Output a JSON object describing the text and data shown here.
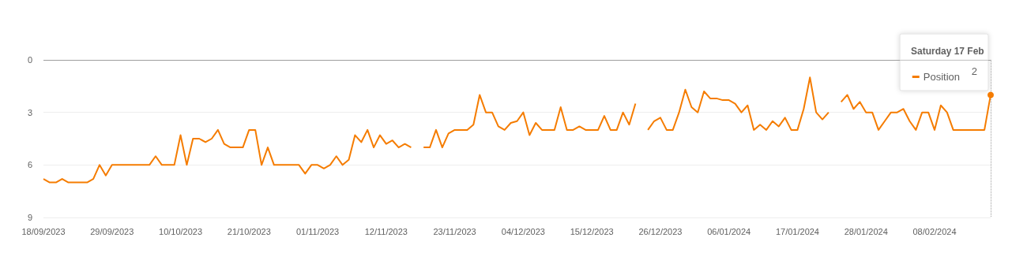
{
  "chart_data": {
    "type": "line",
    "x": [
      "2023-09-18",
      "2023-09-19",
      "2023-09-20",
      "2023-09-21",
      "2023-09-22",
      "2023-09-23",
      "2023-09-24",
      "2023-09-25",
      "2023-09-26",
      "2023-09-27",
      "2023-09-28",
      "2023-09-29",
      "2023-09-30",
      "2023-10-01",
      "2023-10-02",
      "2023-10-03",
      "2023-10-04",
      "2023-10-05",
      "2023-10-06",
      "2023-10-07",
      "2023-10-08",
      "2023-10-09",
      "2023-10-10",
      "2023-10-11",
      "2023-10-12",
      "2023-10-13",
      "2023-10-14",
      "2023-10-15",
      "2023-10-16",
      "2023-10-17",
      "2023-10-18",
      "2023-10-19",
      "2023-10-20",
      "2023-10-21",
      "2023-10-22",
      "2023-10-23",
      "2023-10-24",
      "2023-10-25",
      "2023-10-26",
      "2023-10-27",
      "2023-10-28",
      "2023-10-29",
      "2023-10-30",
      "2023-10-31",
      "2023-11-01",
      "2023-11-02",
      "2023-11-03",
      "2023-11-04",
      "2023-11-05",
      "2023-11-06",
      "2023-11-07",
      "2023-11-08",
      "2023-11-09",
      "2023-11-10",
      "2023-11-11",
      "2023-11-12",
      "2023-11-13",
      "2023-11-14",
      "2023-11-15",
      "2023-11-16",
      "2023-11-17",
      "2023-11-18",
      "2023-11-19",
      "2023-11-20",
      "2023-11-21",
      "2023-11-22",
      "2023-11-23",
      "2023-11-24",
      "2023-11-25",
      "2023-11-26",
      "2023-11-27",
      "2023-11-28",
      "2023-11-29",
      "2023-11-30",
      "2023-12-01",
      "2023-12-02",
      "2023-12-03",
      "2023-12-04",
      "2023-12-05",
      "2023-12-06",
      "2023-12-07",
      "2023-12-08",
      "2023-12-09",
      "2023-12-10",
      "2023-12-11",
      "2023-12-12",
      "2023-12-13",
      "2023-12-14",
      "2023-12-15",
      "2023-12-16",
      "2023-12-17",
      "2023-12-18",
      "2023-12-19",
      "2023-12-20",
      "2023-12-21",
      "2023-12-22",
      "2023-12-23",
      "2023-12-24",
      "2023-12-25",
      "2023-12-26",
      "2023-12-27",
      "2023-12-28",
      "2023-12-29",
      "2023-12-30",
      "2023-12-31",
      "2024-01-01",
      "2024-01-02",
      "2024-01-03",
      "2024-01-04",
      "2024-01-05",
      "2024-01-06",
      "2024-01-07",
      "2024-01-08",
      "2024-01-09",
      "2024-01-10",
      "2024-01-11",
      "2024-01-12",
      "2024-01-13",
      "2024-01-14",
      "2024-01-15",
      "2024-01-16",
      "2024-01-17",
      "2024-01-18",
      "2024-01-19",
      "2024-01-20",
      "2024-01-21",
      "2024-01-22",
      "2024-01-23",
      "2024-01-24",
      "2024-01-25",
      "2024-01-26",
      "2024-01-27",
      "2024-01-28",
      "2024-01-29",
      "2024-01-30",
      "2024-01-31",
      "2024-02-01",
      "2024-02-02",
      "2024-02-03",
      "2024-02-04",
      "2024-02-05",
      "2024-02-06",
      "2024-02-07",
      "2024-02-08",
      "2024-02-09",
      "2024-02-10",
      "2024-02-11",
      "2024-02-12",
      "2024-02-13",
      "2024-02-14",
      "2024-02-15",
      "2024-02-16",
      "2024-02-17"
    ],
    "series": [
      {
        "name": "Position",
        "color": "#f57c00",
        "values": [
          6.8,
          7,
          7,
          6.8,
          7,
          7,
          7,
          7,
          6.8,
          6,
          6.6,
          6,
          6,
          6,
          6,
          6,
          6,
          6,
          5.5,
          6,
          6,
          6,
          4.3,
          6,
          4.5,
          4.5,
          4.7,
          4.5,
          4,
          4.8,
          5,
          5,
          5,
          4,
          4,
          6,
          5,
          6,
          6,
          6,
          6,
          6,
          6.5,
          6,
          6,
          6.2,
          6,
          5.5,
          6,
          5.7,
          4.3,
          4.7,
          4,
          5,
          4.3,
          4.8,
          4.6,
          5,
          4.8,
          5,
          null,
          5,
          5,
          4,
          5,
          4.2,
          4,
          4,
          4,
          3.7,
          2,
          3,
          3,
          3.8,
          4,
          3.6,
          3.5,
          3,
          4.3,
          3.6,
          4,
          4,
          4,
          2.7,
          4,
          4,
          3.8,
          4,
          4,
          4,
          3.2,
          4,
          4,
          3,
          3.7,
          2.5,
          null,
          4,
          3.5,
          3.3,
          4,
          4,
          3,
          1.7,
          2.7,
          3,
          1.8,
          2.2,
          2.2,
          2.3,
          2.3,
          2.5,
          3,
          2.6,
          4,
          3.7,
          4,
          3.5,
          3.8,
          3.3,
          4,
          4,
          2.8,
          1,
          3,
          3.4,
          3,
          null,
          2.4,
          2,
          2.8,
          2.4,
          3,
          3,
          4,
          3.5,
          3,
          3,
          2.8,
          3.5,
          4,
          3,
          3,
          4,
          2.6,
          3,
          4,
          4,
          4,
          4,
          4,
          4,
          2
        ],
        "value_labels": [
          null,
          null,
          null,
          null,
          null,
          null,
          null,
          null,
          null,
          null,
          null,
          null,
          null,
          null,
          null,
          null,
          null,
          null,
          null,
          null,
          null,
          null,
          null,
          null,
          null,
          null,
          null,
          null,
          null,
          null,
          null,
          null,
          null,
          null,
          null,
          null,
          null,
          null,
          null,
          null,
          null,
          null,
          null,
          null,
          null,
          null,
          null,
          null,
          null,
          null,
          null,
          null,
          null,
          null,
          null,
          null,
          null,
          null,
          null,
          null,
          null,
          null,
          null,
          null,
          null,
          null,
          null,
          null,
          null,
          null,
          null,
          null,
          null,
          null,
          null,
          null,
          null,
          null,
          null,
          null,
          null,
          null,
          null,
          null,
          null,
          null,
          null,
          null,
          null,
          null,
          null,
          null,
          null,
          null,
          null,
          null,
          null,
          null,
          null,
          null,
          null,
          null,
          null,
          null,
          null,
          null,
          null,
          null,
          null,
          null,
          null,
          null,
          null,
          null,
          null,
          null,
          null,
          null,
          null,
          null,
          null,
          null,
          null,
          null,
          null,
          null,
          null,
          null,
          null,
          null,
          null,
          null,
          null,
          null,
          null,
          null,
          null,
          null,
          null,
          null,
          null,
          null,
          null,
          null,
          null,
          null,
          null,
          null,
          null,
          null,
          null,
          null,
          "2"
        ]
      }
    ],
    "xlim": [
      "2023-09-18",
      "2024-02-17"
    ],
    "xticks": [
      {
        "value": "2023-09-18",
        "label": "18/09/2023"
      },
      {
        "value": "2023-09-29",
        "label": "29/09/2023"
      },
      {
        "value": "2023-10-10",
        "label": "10/10/2023"
      },
      {
        "value": "2023-10-21",
        "label": "21/10/2023"
      },
      {
        "value": "2023-11-01",
        "label": "01/11/2023"
      },
      {
        "value": "2023-11-12",
        "label": "12/11/2023"
      },
      {
        "value": "2023-11-23",
        "label": "23/11/2023"
      },
      {
        "value": "2023-12-04",
        "label": "04/12/2023"
      },
      {
        "value": "2023-12-15",
        "label": "15/12/2023"
      },
      {
        "value": "2023-12-26",
        "label": "26/12/2023"
      },
      {
        "value": "2024-01-06",
        "label": "06/01/2024"
      },
      {
        "value": "2024-01-17",
        "label": "17/01/2024"
      },
      {
        "value": "2024-01-28",
        "label": "28/01/2024"
      },
      {
        "value": "2024-02-08",
        "label": "08/02/2024"
      }
    ],
    "ylim": [
      9,
      0
    ],
    "yticks": [
      0,
      3,
      6,
      9
    ],
    "grid": "y",
    "legend": "top right",
    "marker": "none",
    "ref_lines": [
      {
        "axis": "x",
        "value": "2024-02-17",
        "color": "#9e9e9e",
        "line_style": "dotted"
      }
    ],
    "annotations": [
      "Saturday 17 Feb"
    ]
  }
}
